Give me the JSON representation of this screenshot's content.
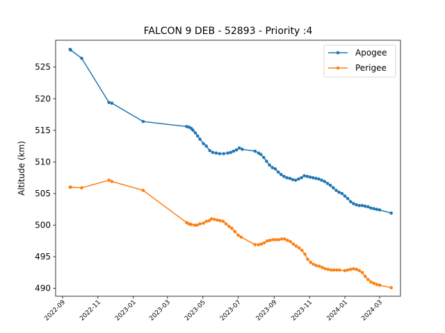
{
  "chart_data": {
    "type": "line",
    "title": "FALCON 9 DEB - 52893 - Priority :4",
    "xlabel": "",
    "ylabel": "Altitude (km)",
    "ylim": [
      488.75,
      529.25
    ],
    "xlim": [
      "2022-08-20",
      "2024-04-06"
    ],
    "yticks": [
      490,
      495,
      500,
      505,
      510,
      515,
      520,
      525
    ],
    "xticks": [
      "2022-09",
      "2022-11",
      "2023-01",
      "2023-03",
      "2023-05",
      "2023-07",
      "2023-09",
      "2023-11",
      "2024-01",
      "2024-03"
    ],
    "legend": "top-right",
    "grid": false,
    "series": [
      {
        "name": "Apogee",
        "color": "#1f77b4",
        "points": [
          [
            "2022-09-14",
            527.8
          ],
          [
            "2022-09-15",
            527.7
          ],
          [
            "2022-10-04",
            526.4
          ],
          [
            "2022-11-20",
            519.4
          ],
          [
            "2022-11-25",
            519.3
          ],
          [
            "2023-01-18",
            516.4
          ],
          [
            "2023-04-03",
            515.6
          ],
          [
            "2023-04-07",
            515.5
          ],
          [
            "2023-04-11",
            515.3
          ],
          [
            "2023-04-14",
            515.0
          ],
          [
            "2023-04-18",
            514.6
          ],
          [
            "2023-04-22",
            514.1
          ],
          [
            "2023-04-26",
            513.6
          ],
          [
            "2023-05-02",
            512.9
          ],
          [
            "2023-05-07",
            512.5
          ],
          [
            "2023-05-13",
            511.8
          ],
          [
            "2023-05-18",
            511.5
          ],
          [
            "2023-05-24",
            511.4
          ],
          [
            "2023-05-30",
            511.3
          ],
          [
            "2023-06-06",
            511.3
          ],
          [
            "2023-06-13",
            511.4
          ],
          [
            "2023-06-18",
            511.5
          ],
          [
            "2023-06-23",
            511.7
          ],
          [
            "2023-06-28",
            511.9
          ],
          [
            "2023-07-03",
            512.2
          ],
          [
            "2023-07-08",
            512.0
          ],
          [
            "2023-07-30",
            511.7
          ],
          [
            "2023-08-05",
            511.4
          ],
          [
            "2023-08-09",
            511.2
          ],
          [
            "2023-08-14",
            510.7
          ],
          [
            "2023-08-19",
            510.1
          ],
          [
            "2023-08-24",
            509.5
          ],
          [
            "2023-08-29",
            509.1
          ],
          [
            "2023-09-03",
            508.9
          ],
          [
            "2023-09-08",
            508.4
          ],
          [
            "2023-09-13",
            508.0
          ],
          [
            "2023-09-18",
            507.7
          ],
          [
            "2023-09-23",
            507.5
          ],
          [
            "2023-09-28",
            507.4
          ],
          [
            "2023-10-03",
            507.2
          ],
          [
            "2023-10-08",
            507.1
          ],
          [
            "2023-10-13",
            507.3
          ],
          [
            "2023-10-18",
            507.5
          ],
          [
            "2023-10-23",
            507.8
          ],
          [
            "2023-10-28",
            507.7
          ],
          [
            "2023-11-02",
            507.6
          ],
          [
            "2023-11-07",
            507.5
          ],
          [
            "2023-11-12",
            507.4
          ],
          [
            "2023-11-17",
            507.3
          ],
          [
            "2023-11-22",
            507.1
          ],
          [
            "2023-11-27",
            506.9
          ],
          [
            "2023-12-02",
            506.6
          ],
          [
            "2023-12-07",
            506.3
          ],
          [
            "2023-12-12",
            505.9
          ],
          [
            "2023-12-17",
            505.5
          ],
          [
            "2023-12-22",
            505.2
          ],
          [
            "2023-12-27",
            505.0
          ],
          [
            "2024-01-01",
            504.6
          ],
          [
            "2024-01-06",
            504.2
          ],
          [
            "2024-01-11",
            503.7
          ],
          [
            "2024-01-16",
            503.4
          ],
          [
            "2024-01-21",
            503.2
          ],
          [
            "2024-01-26",
            503.1
          ],
          [
            "2024-01-31",
            503.1
          ],
          [
            "2024-02-05",
            503.0
          ],
          [
            "2024-02-10",
            502.9
          ],
          [
            "2024-02-15",
            502.7
          ],
          [
            "2024-02-20",
            502.6
          ],
          [
            "2024-02-25",
            502.5
          ],
          [
            "2024-03-01",
            502.4
          ],
          [
            "2024-03-21",
            501.9
          ]
        ]
      },
      {
        "name": "Perigee",
        "color": "#ff7f0e",
        "points": [
          [
            "2022-09-14",
            506.0
          ],
          [
            "2022-09-15",
            506.0
          ],
          [
            "2022-10-04",
            505.9
          ],
          [
            "2022-11-20",
            507.1
          ],
          [
            "2022-11-25",
            506.9
          ],
          [
            "2023-01-18",
            505.5
          ],
          [
            "2023-04-03",
            500.4
          ],
          [
            "2023-04-07",
            500.2
          ],
          [
            "2023-04-11",
            500.1
          ],
          [
            "2023-04-17",
            500.0
          ],
          [
            "2023-04-21",
            500.0
          ],
          [
            "2023-04-26",
            500.2
          ],
          [
            "2023-05-02",
            500.3
          ],
          [
            "2023-05-07",
            500.6
          ],
          [
            "2023-05-12",
            500.7
          ],
          [
            "2023-05-16",
            501.0
          ],
          [
            "2023-05-21",
            500.9
          ],
          [
            "2023-05-26",
            500.8
          ],
          [
            "2023-05-31",
            500.7
          ],
          [
            "2023-06-05",
            500.6
          ],
          [
            "2023-06-10",
            500.2
          ],
          [
            "2023-06-15",
            499.8
          ],
          [
            "2023-06-20",
            499.5
          ],
          [
            "2023-06-25",
            499.0
          ],
          [
            "2023-07-01",
            498.4
          ],
          [
            "2023-07-06",
            498.1
          ],
          [
            "2023-07-30",
            496.9
          ],
          [
            "2023-08-05",
            496.9
          ],
          [
            "2023-08-10",
            497.0
          ],
          [
            "2023-08-15",
            497.2
          ],
          [
            "2023-08-20",
            497.5
          ],
          [
            "2023-08-25",
            497.6
          ],
          [
            "2023-08-30",
            497.7
          ],
          [
            "2023-09-04",
            497.7
          ],
          [
            "2023-09-09",
            497.7
          ],
          [
            "2023-09-14",
            497.8
          ],
          [
            "2023-09-19",
            497.8
          ],
          [
            "2023-09-24",
            497.6
          ],
          [
            "2023-09-29",
            497.4
          ],
          [
            "2023-10-04",
            497.0
          ],
          [
            "2023-10-09",
            496.7
          ],
          [
            "2023-10-14",
            496.4
          ],
          [
            "2023-10-19",
            496.0
          ],
          [
            "2023-10-24",
            495.4
          ],
          [
            "2023-10-29",
            494.6
          ],
          [
            "2023-11-03",
            494.1
          ],
          [
            "2023-11-08",
            493.8
          ],
          [
            "2023-11-13",
            493.6
          ],
          [
            "2023-11-18",
            493.5
          ],
          [
            "2023-11-23",
            493.3
          ],
          [
            "2023-11-28",
            493.1
          ],
          [
            "2023-12-03",
            493.0
          ],
          [
            "2023-12-08",
            492.9
          ],
          [
            "2023-12-13",
            492.9
          ],
          [
            "2023-12-18",
            492.9
          ],
          [
            "2023-12-23",
            492.9
          ],
          [
            "2024-01-01",
            492.8
          ],
          [
            "2024-01-06",
            492.9
          ],
          [
            "2024-01-11",
            493.0
          ],
          [
            "2024-01-16",
            493.1
          ],
          [
            "2024-01-21",
            493.0
          ],
          [
            "2024-01-26",
            492.8
          ],
          [
            "2024-01-31",
            492.5
          ],
          [
            "2024-02-05",
            491.9
          ],
          [
            "2024-02-10",
            491.4
          ],
          [
            "2024-02-15",
            491.0
          ],
          [
            "2024-02-20",
            490.8
          ],
          [
            "2024-02-25",
            490.6
          ],
          [
            "2024-03-01",
            490.5
          ],
          [
            "2024-03-21",
            490.1
          ]
        ]
      }
    ]
  }
}
